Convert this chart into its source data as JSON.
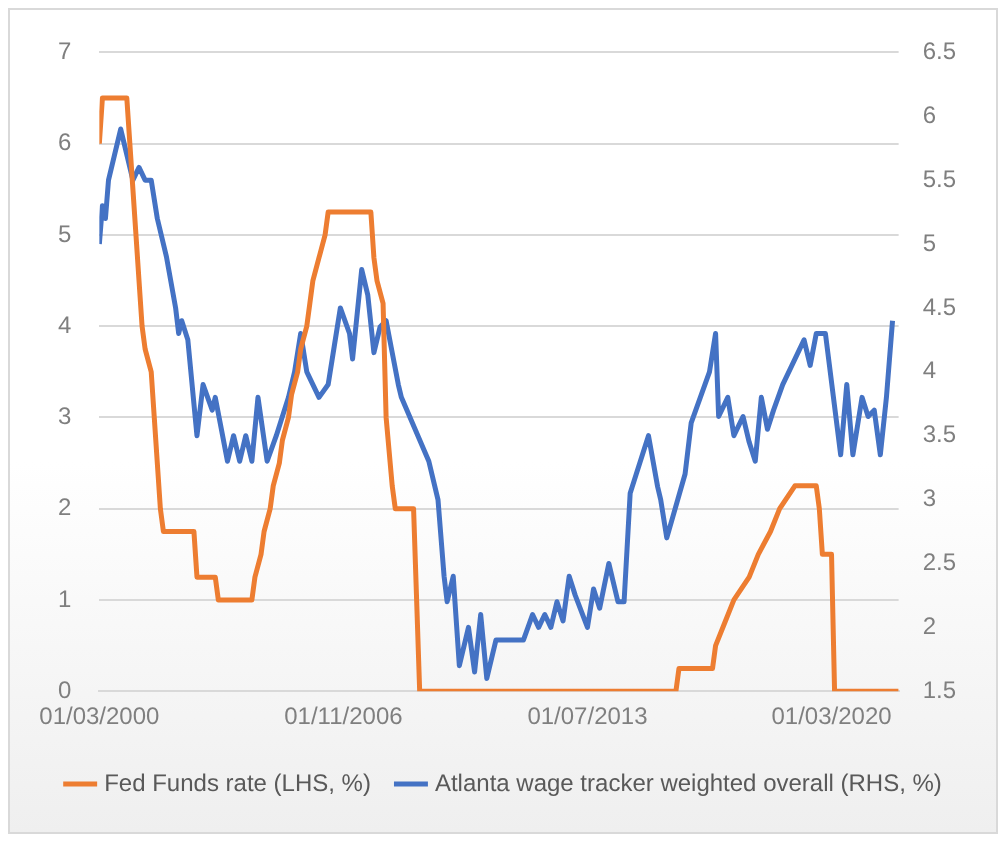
{
  "chart_data": {
    "type": "line",
    "xlim": [
      "2000-03-01",
      "2022-01-01"
    ],
    "xticks": [
      {
        "value": "2000-03-01",
        "label": "01/03/2000"
      },
      {
        "value": "2006-11-01",
        "label": "01/11/2006"
      },
      {
        "value": "2013-07-01",
        "label": "01/07/2013"
      },
      {
        "value": "2020-03-01",
        "label": "01/03/2020"
      }
    ],
    "ylim": [
      0,
      7
    ],
    "yticks": [
      0,
      1,
      2,
      3,
      4,
      5,
      6,
      7
    ],
    "y2lim": [
      1.5,
      6.5
    ],
    "y2ticks": [
      1.5,
      2,
      2.5,
      3,
      3.5,
      4,
      4.5,
      5,
      5.5,
      6,
      6.5
    ],
    "grid": "y",
    "legend": "bottom",
    "marker": "none",
    "line_style": "solid",
    "series": [
      {
        "name": "Fed Funds rate (LHS, %)",
        "color": "#ed7d31",
        "x": [
          "2000-03",
          "2000-04",
          "2000-12",
          "2001-01",
          "2001-02",
          "2001-03",
          "2001-04",
          "2001-05",
          "2001-06",
          "2001-08",
          "2001-09",
          "2001-10",
          "2001-11",
          "2001-12",
          "2002-10",
          "2002-11",
          "2003-05",
          "2003-06",
          "2004-05",
          "2004-06",
          "2004-08",
          "2004-09",
          "2004-11",
          "2004-12",
          "2005-02",
          "2005-03",
          "2005-05",
          "2005-06",
          "2005-08",
          "2005-09",
          "2005-11",
          "2005-12",
          "2006-01",
          "2006-03",
          "2006-05",
          "2006-06",
          "2007-08",
          "2007-09",
          "2007-10",
          "2007-12",
          "2008-01",
          "2008-03",
          "2008-04",
          "2008-10",
          "2008-11",
          "2008-12",
          "2015-12",
          "2016-01",
          "2016-12",
          "2017-01",
          "2017-04",
          "2017-07",
          "2017-12",
          "2018-03",
          "2018-07",
          "2018-10",
          "2019-03",
          "2019-10",
          "2019-11",
          "2019-12",
          "2020-03",
          "2020-04",
          "2022-01"
        ],
        "values": [
          6.0,
          6.5,
          6.5,
          6.0,
          5.5,
          5.0,
          4.5,
          4.0,
          3.75,
          3.5,
          3.0,
          2.5,
          2.0,
          1.75,
          1.75,
          1.25,
          1.25,
          1.0,
          1.0,
          1.25,
          1.5,
          1.75,
          2.0,
          2.25,
          2.5,
          2.75,
          3.0,
          3.25,
          3.5,
          3.75,
          4.0,
          4.25,
          4.5,
          4.75,
          5.0,
          5.25,
          5.25,
          4.75,
          4.5,
          4.25,
          3.0,
          2.25,
          2.0,
          2.0,
          1.0,
          0,
          0,
          0.25,
          0.25,
          0.5,
          0.75,
          1.0,
          1.25,
          1.5,
          1.75,
          2.0,
          2.25,
          2.25,
          2.0,
          1.5,
          1.5,
          0,
          0
        ]
      },
      {
        "name": "Atlanta wage tracker weighted overall (RHS, %)",
        "color": "#4472c4",
        "axis": "y2",
        "x": [
          "2000-03",
          "2000-04",
          "2000-05",
          "2000-06",
          "2000-08",
          "2000-10",
          "2000-11",
          "2001-02",
          "2001-04",
          "2001-06",
          "2001-08",
          "2001-10",
          "2002-01",
          "2002-04",
          "2002-05",
          "2002-06",
          "2002-08",
          "2002-11",
          "2003-01",
          "2003-04",
          "2003-05",
          "2003-07",
          "2003-09",
          "2003-11",
          "2004-01",
          "2004-03",
          "2004-05",
          "2004-07",
          "2004-10",
          "2005-01",
          "2005-05",
          "2005-07",
          "2005-09",
          "2005-11",
          "2006-01",
          "2006-03",
          "2006-06",
          "2006-08",
          "2006-10",
          "2007-01",
          "2007-02",
          "2007-05",
          "2007-07",
          "2007-09",
          "2007-11",
          "2008-01",
          "2008-03",
          "2008-05",
          "2008-06",
          "2009-03",
          "2009-06",
          "2009-08",
          "2009-09",
          "2009-11",
          "2010-01",
          "2010-04",
          "2010-06",
          "2010-08",
          "2010-10",
          "2011-01",
          "2011-06",
          "2011-10",
          "2012-01",
          "2012-03",
          "2012-05",
          "2012-07",
          "2012-09",
          "2012-11",
          "2013-01",
          "2013-03",
          "2013-07",
          "2013-09",
          "2013-11",
          "2014-02",
          "2014-05",
          "2014-07",
          "2014-09",
          "2014-11",
          "2015-03",
          "2015-06",
          "2015-07",
          "2015-09",
          "2016-03",
          "2016-05",
          "2016-08",
          "2016-11",
          "2017-01",
          "2017-02",
          "2017-05",
          "2017-07",
          "2017-10",
          "2017-12",
          "2018-02",
          "2018-04",
          "2018-06",
          "2018-08",
          "2018-11",
          "2019-01",
          "2019-06",
          "2019-08",
          "2019-10",
          "2020-01",
          "2020-06",
          "2020-08",
          "2020-10",
          "2021-01",
          "2021-03",
          "2021-05",
          "2021-07",
          "2021-09",
          "2021-11"
        ],
        "values": [
          5.0,
          5.3,
          5.2,
          5.5,
          5.7,
          5.9,
          5.8,
          5.5,
          5.6,
          5.5,
          5.5,
          5.2,
          4.9,
          4.5,
          4.3,
          4.4,
          4.25,
          3.5,
          3.9,
          3.7,
          3.8,
          3.55,
          3.3,
          3.5,
          3.3,
          3.5,
          3.3,
          3.8,
          3.3,
          3.5,
          3.8,
          4.0,
          4.3,
          4.0,
          3.9,
          3.8,
          3.9,
          4.2,
          4.5,
          4.3,
          4.1,
          4.8,
          4.6,
          4.15,
          4.35,
          4.4,
          4.15,
          3.9,
          3.8,
          3.3,
          3.0,
          2.4,
          2.2,
          2.4,
          1.7,
          2.0,
          1.65,
          2.1,
          1.6,
          1.9,
          1.9,
          1.9,
          2.1,
          2.0,
          2.1,
          2.0,
          2.2,
          2.05,
          2.4,
          2.25,
          2.0,
          2.3,
          2.15,
          2.5,
          2.2,
          2.2,
          3.05,
          3.2,
          3.5,
          3.1,
          3.0,
          2.7,
          3.2,
          3.6,
          3.8,
          4.0,
          4.3,
          3.65,
          3.8,
          3.5,
          3.65,
          3.45,
          3.3,
          3.8,
          3.55,
          3.7,
          3.9,
          4.0,
          4.25,
          4.05,
          4.3,
          4.3,
          3.35,
          3.9,
          3.35,
          3.8,
          3.65,
          3.7,
          3.35,
          3.8,
          4.4
        ]
      }
    ]
  }
}
